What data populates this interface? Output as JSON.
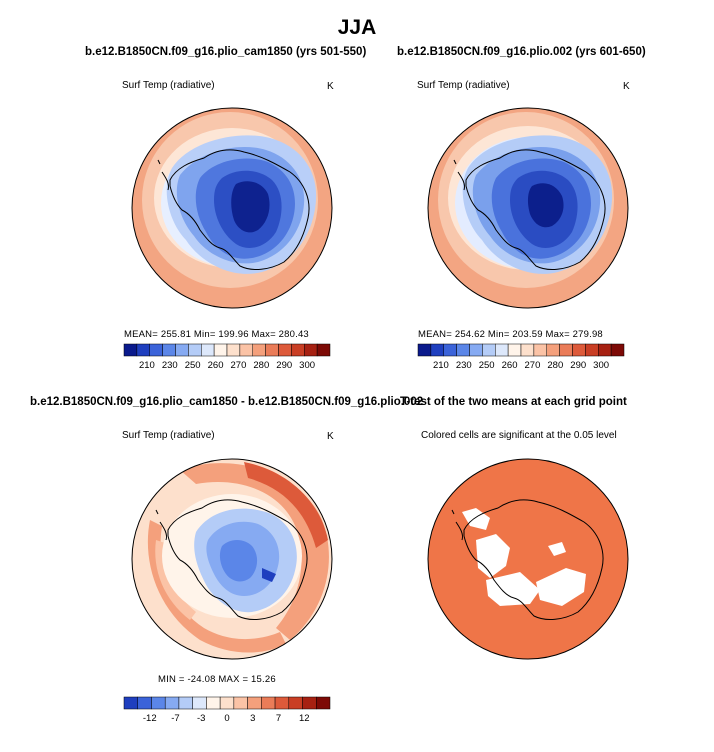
{
  "season": "JJA",
  "panels": [
    {
      "title": "b.e12.B1850CN.f09_g16.plio_cam1850 (yrs 501-550)",
      "variable": "Surf Temp (radiative)",
      "unit": "K",
      "stats": "MEAN= 255.81   Min= 199.96   Max= 280.43",
      "colorbar_labels": [
        "210",
        "230",
        "250",
        "260",
        "270",
        "280",
        "290",
        "300"
      ]
    },
    {
      "title": "b.e12.B1850CN.f09_g16.plio.002 (yrs 601-650)",
      "variable": "Surf Temp (radiative)",
      "unit": "K",
      "stats": "MEAN= 254.62   Min= 203.59   Max= 279.98",
      "colorbar_labels": [
        "210",
        "230",
        "250",
        "260",
        "270",
        "280",
        "290",
        "300"
      ]
    },
    {
      "title": "b.e12.B1850CN.f09_g16.plio_cam1850 - b.e12.B1850CN.f09_g16.plio.002",
      "variable": "Surf Temp (radiative)",
      "unit": "K",
      "stats": "MIN = -24.08  MAX =  15.26",
      "colorbar_labels": [
        "-12",
        "-7",
        "-3",
        "0",
        "3",
        "7",
        "12"
      ]
    },
    {
      "title": "T-test of the two means at each grid point",
      "subtitle": "Colored cells are significant at the 0.05 level"
    }
  ],
  "colors": {
    "abs_scale": [
      "#0a1a8c",
      "#1f3fbf",
      "#3b63d9",
      "#5b86e8",
      "#86aaf2",
      "#b4ccf7",
      "#dde8fb",
      "#fff4ea",
      "#fde0cc",
      "#fbc3a6",
      "#f4a07c",
      "#ea7c58",
      "#dd5a3a",
      "#c93e24",
      "#a72112",
      "#7d0a06"
    ],
    "diff_scale": [
      "#1f3fbf",
      "#3b63d9",
      "#5b86e8",
      "#86aaf2",
      "#b4ccf7",
      "#dde8fb",
      "#fff4ea",
      "#fde0cc",
      "#fbc3a6",
      "#f4a07c",
      "#ea7c58",
      "#dd5a3a",
      "#c93e24",
      "#a72112",
      "#7d0a06"
    ],
    "significant": "#ef7548"
  }
}
